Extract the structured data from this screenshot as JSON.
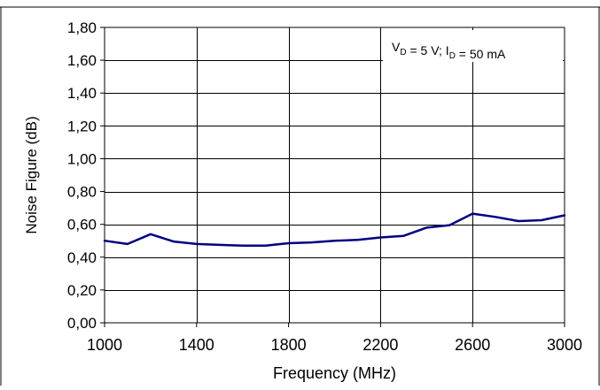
{
  "chart_data": {
    "type": "line",
    "xlabel": "Frequency (MHz)",
    "ylabel": "Noise Figure (dB)",
    "annotation": {
      "parts": [
        {
          "text": "V",
          "sub": false
        },
        {
          "text": "D",
          "sub": true
        },
        {
          "text": " = 5 V; I",
          "sub": false
        },
        {
          "text": "D",
          "sub": true
        },
        {
          "text": " = 50 mA",
          "sub": false
        }
      ]
    },
    "xlim": [
      1000,
      3000
    ],
    "ylim": [
      0,
      1.8
    ],
    "x_ticks": [
      1000,
      1400,
      1800,
      2200,
      2600,
      3000
    ],
    "x_tick_labels": [
      "1000",
      "1400",
      "1800",
      "2200",
      "2600",
      "3000"
    ],
    "y_ticks": [
      0,
      0.2,
      0.4,
      0.6,
      0.8,
      1.0,
      1.2,
      1.4,
      1.6,
      1.8
    ],
    "y_tick_labels": [
      "0,00",
      "0,20",
      "0,40",
      "0,60",
      "0,80",
      "1,00",
      "1,20",
      "1,40",
      "1,60",
      "1,80"
    ],
    "x_grid_every": 400,
    "y_grid_every": 0.2,
    "grid": true,
    "legend": "none",
    "series": [
      {
        "color": "#000080",
        "x": [
          1000,
          1100,
          1200,
          1300,
          1400,
          1500,
          1600,
          1700,
          1800,
          1900,
          2000,
          2100,
          2200,
          2300,
          2400,
          2500,
          2600,
          2700,
          2800,
          2900,
          3000
        ],
        "y": [
          0.5,
          0.48,
          0.54,
          0.495,
          0.48,
          0.475,
          0.47,
          0.47,
          0.485,
          0.49,
          0.5,
          0.505,
          0.52,
          0.53,
          0.58,
          0.595,
          0.665,
          0.645,
          0.62,
          0.625,
          0.655
        ]
      }
    ]
  }
}
